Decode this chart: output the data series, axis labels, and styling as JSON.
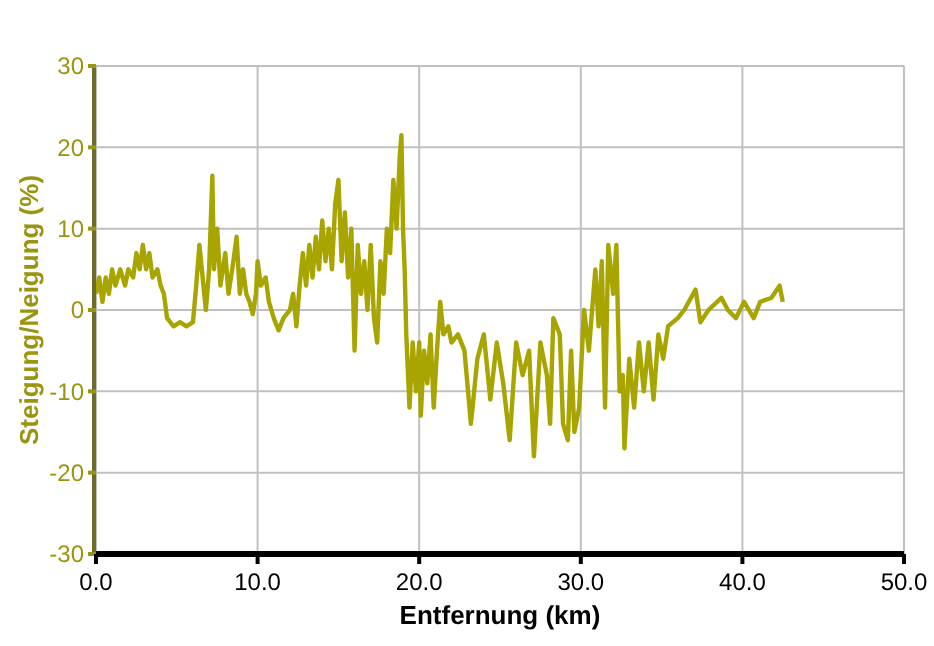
{
  "chart_data": {
    "type": "line",
    "xlabel": "Entfernung (km)",
    "ylabel": "Steigung/Neigung (%)",
    "xlim": [
      0,
      50
    ],
    "ylim": [
      -30,
      30
    ],
    "xticks": [
      {
        "value": 0,
        "label": "0.0"
      },
      {
        "value": 10,
        "label": "10.0"
      },
      {
        "value": 20,
        "label": "20.0"
      },
      {
        "value": 30,
        "label": "30.0"
      },
      {
        "value": 40,
        "label": "40.0"
      },
      {
        "value": 50,
        "label": "50.0"
      }
    ],
    "yticks": [
      -30,
      -20,
      -10,
      0,
      10,
      20,
      30
    ],
    "grid": true,
    "marker": "none",
    "line_style": "solid",
    "series": [
      {
        "color": "#a8a400",
        "x": [
          0,
          0.2,
          0.4,
          0.6,
          0.8,
          1,
          1.2,
          1.5,
          1.8,
          2,
          2.3,
          2.5,
          2.7,
          2.9,
          3.1,
          3.3,
          3.5,
          3.8,
          4,
          4.2,
          4.4,
          4.8,
          5.2,
          5.6,
          6,
          6.2,
          6.4,
          6.6,
          6.8,
          7,
          7.2,
          7.3,
          7.5,
          7.7,
          8,
          8.2,
          8.5,
          8.7,
          8.9,
          9.1,
          9.3,
          9.5,
          9.7,
          9.9,
          10,
          10.2,
          10.5,
          10.7,
          11,
          11.3,
          11.6,
          12,
          12.2,
          12.4,
          12.6,
          12.8,
          13,
          13.2,
          13.4,
          13.6,
          13.8,
          14,
          14.2,
          14.4,
          14.6,
          14.8,
          15,
          15.2,
          15.4,
          15.6,
          15.8,
          16,
          16.2,
          16.4,
          16.6,
          16.8,
          17,
          17.2,
          17.4,
          17.6,
          17.8,
          18,
          18.2,
          18.4,
          18.6,
          18.8,
          18.9,
          19,
          19.1,
          19.2,
          19.4,
          19.6,
          19.8,
          20,
          20.1,
          20.3,
          20.5,
          20.7,
          20.9,
          21.1,
          21.3,
          21.5,
          21.8,
          22,
          22.4,
          22.8,
          23.2,
          23.6,
          24,
          24.4,
          24.8,
          25.2,
          25.6,
          26,
          26.4,
          26.8,
          27.1,
          27.5,
          27.9,
          28.1,
          28.3,
          28.7,
          28.9,
          29.2,
          29.4,
          29.6,
          29.9,
          30.2,
          30.5,
          30.9,
          31.1,
          31.3,
          31.5,
          31.7,
          32,
          32.2,
          32.4,
          32.6,
          32.7,
          33,
          33.3,
          33.6,
          33.9,
          34.2,
          34.5,
          34.8,
          35.1,
          35.4,
          36,
          36.4,
          37.1,
          37.4,
          37.9,
          38.7,
          39.1,
          39.6,
          40.1,
          40.7,
          41.1,
          41.8,
          42.3,
          42.5
        ],
        "values": [
          2,
          4,
          1,
          4,
          2,
          5,
          3,
          5,
          3,
          5,
          4,
          7,
          5,
          8,
          5,
          7,
          4,
          5,
          3,
          2,
          -1,
          -2,
          -1.5,
          -2,
          -1.5,
          3,
          8,
          4,
          0,
          5,
          16.5,
          5,
          10,
          3,
          7,
          2,
          6,
          9,
          2,
          5,
          2,
          1,
          -0.5,
          2,
          6,
          3,
          4,
          1,
          -1,
          -2.5,
          -1,
          0,
          2,
          -2,
          3,
          7,
          3,
          8,
          4,
          9,
          5,
          11,
          6,
          10,
          5,
          13,
          16,
          6,
          12,
          4,
          10,
          -5,
          8,
          2,
          6,
          0,
          8,
          -1,
          -4,
          6,
          2,
          10,
          7,
          16,
          10,
          19,
          21.5,
          10,
          5,
          -3,
          -12,
          -4,
          -10,
          -4,
          -13,
          -5,
          -9,
          -3,
          -12,
          -5,
          1,
          -3,
          -2,
          -4,
          -3,
          -5,
          -14,
          -6,
          -3,
          -11,
          -4,
          -9,
          -16,
          -4,
          -8,
          -5,
          -18,
          -4,
          -8,
          -14,
          -1,
          -3,
          -14,
          -16,
          -5,
          -15,
          -12,
          0,
          -5,
          5,
          -2,
          6,
          -12,
          8,
          2,
          8,
          -10,
          -8,
          -17,
          -6,
          -12,
          -4,
          -10,
          -4,
          -11,
          -3,
          -6,
          -2,
          -1,
          0,
          2.5,
          -1.5,
          0,
          1.5,
          0,
          -1,
          1,
          -1,
          1,
          1.5,
          3,
          1
        ]
      }
    ]
  }
}
